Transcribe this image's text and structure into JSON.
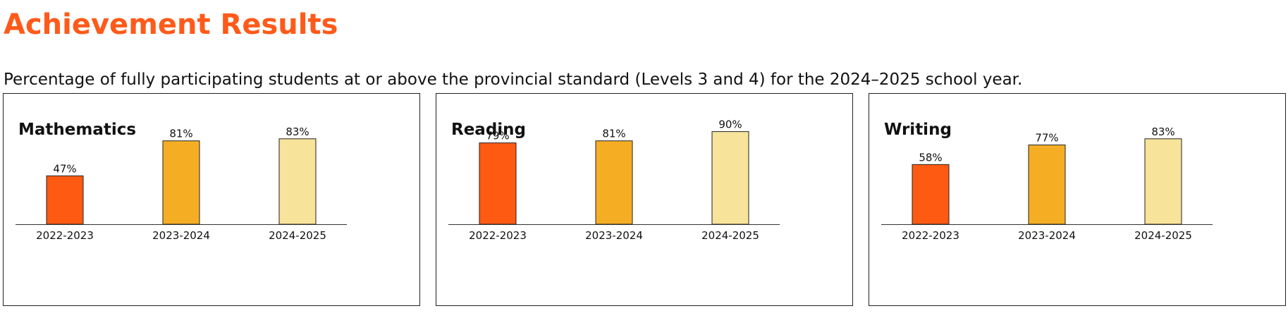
{
  "page": {
    "title": "Achievement Results",
    "subtitle": "Percentage of fully participating students at or above the provincial standard (Levels 3 and 4) for the 2024–2025 school year."
  },
  "colors": {
    "title": "#ff5a1a",
    "bar_2022_2023": "#ff5a12",
    "bar_2023_2024": "#f5ae24",
    "bar_2024_2025": "#f8e39b",
    "bar_outline": "#222222",
    "axis": "#333333"
  },
  "chart_data": [
    {
      "type": "bar",
      "title": "Mathematics",
      "categories": [
        "2022-2023",
        "2023-2024",
        "2024-2025"
      ],
      "values": [
        47,
        81,
        83
      ],
      "data_labels": [
        "47%",
        "81%",
        "83%"
      ],
      "xlabel": "",
      "ylabel": "",
      "ylim": [
        0,
        100
      ],
      "grid": false,
      "legend": "none"
    },
    {
      "type": "bar",
      "title": "Reading",
      "categories": [
        "2022-2023",
        "2023-2024",
        "2024-2025"
      ],
      "values": [
        79,
        81,
        90
      ],
      "data_labels": [
        "79%",
        "81%",
        "90%"
      ],
      "xlabel": "",
      "ylabel": "",
      "ylim": [
        0,
        100
      ],
      "grid": false,
      "legend": "none"
    },
    {
      "type": "bar",
      "title": "Writing",
      "categories": [
        "2022-2023",
        "2023-2024",
        "2024-2025"
      ],
      "values": [
        58,
        77,
        83
      ],
      "data_labels": [
        "58%",
        "77%",
        "83%"
      ],
      "xlabel": "",
      "ylabel": "",
      "ylim": [
        0,
        100
      ],
      "grid": false,
      "legend": "none"
    }
  ]
}
